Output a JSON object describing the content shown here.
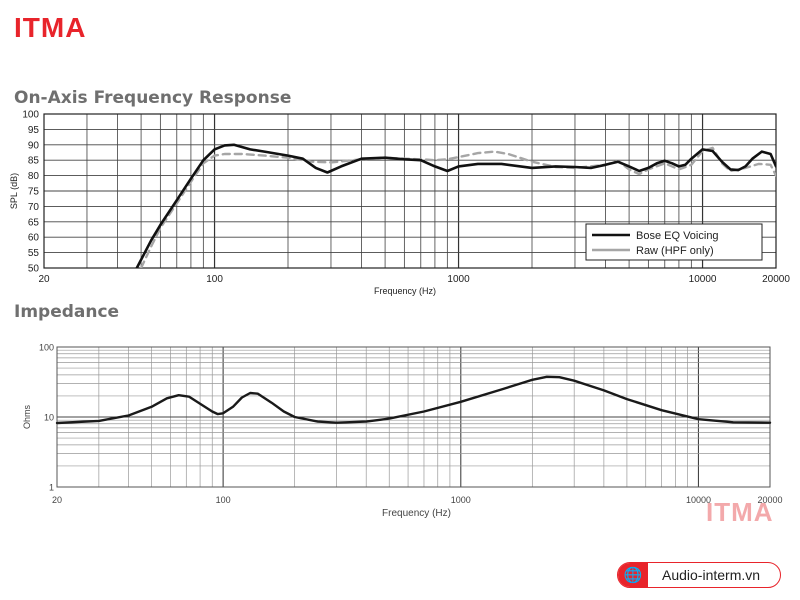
{
  "brand": {
    "logo_text": "ITMA",
    "watermark_text": "ITMA",
    "accent_color": "#e8242b",
    "site_badge": {
      "icon": "globe-icon",
      "text": "Audio-interm.vn"
    }
  },
  "chart_data": [
    {
      "type": "line",
      "title": "On-Axis Frequency Response",
      "xlabel": "Frequency (Hz)",
      "ylabel": "SPL (dB)",
      "xscale": "log",
      "xlim": [
        20,
        20000
      ],
      "ylim": [
        50,
        100
      ],
      "x_ticks": [
        20,
        100,
        1000,
        10000,
        20000
      ],
      "x_tick_labels": [
        "20",
        "100",
        "1000",
        "10000",
        "20000"
      ],
      "y_ticks": [
        50,
        55,
        60,
        65,
        70,
        75,
        80,
        85,
        90,
        95,
        100
      ],
      "y_tick_labels": [
        "50",
        "55",
        "60",
        "65",
        "70",
        "75",
        "80",
        "85",
        "90",
        "95",
        "100"
      ],
      "grid": true,
      "legend_position": "bottom-right",
      "series": [
        {
          "name": "Bose EQ Voicing",
          "color": "#111111",
          "dash": "solid",
          "points": [
            [
              48,
              50
            ],
            [
              55,
              59
            ],
            [
              60,
              64
            ],
            [
              70,
              72
            ],
            [
              80,
              79
            ],
            [
              90,
              85
            ],
            [
              100,
              88.5
            ],
            [
              110,
              89.8
            ],
            [
              120,
              90
            ],
            [
              140,
              88.5
            ],
            [
              160,
              87.8
            ],
            [
              200,
              86.5
            ],
            [
              230,
              85.5
            ],
            [
              260,
              82.5
            ],
            [
              290,
              81
            ],
            [
              330,
              83
            ],
            [
              400,
              85.5
            ],
            [
              500,
              85.8
            ],
            [
              600,
              85.3
            ],
            [
              700,
              85
            ],
            [
              800,
              83
            ],
            [
              900,
              81.5
            ],
            [
              1000,
              83
            ],
            [
              1200,
              83.8
            ],
            [
              1500,
              83.8
            ],
            [
              2000,
              82.5
            ],
            [
              2500,
              83
            ],
            [
              3000,
              82.8
            ],
            [
              3500,
              82.5
            ],
            [
              4000,
              83.5
            ],
            [
              4500,
              84.5
            ],
            [
              5000,
              83
            ],
            [
              5500,
              81.5
            ],
            [
              6000,
              82.5
            ],
            [
              6500,
              84
            ],
            [
              7000,
              84.8
            ],
            [
              7500,
              84
            ],
            [
              8000,
              83
            ],
            [
              8500,
              83.5
            ],
            [
              9000,
              85.5
            ],
            [
              10000,
              88.5
            ],
            [
              11000,
              88
            ],
            [
              12000,
              84.5
            ],
            [
              13000,
              82
            ],
            [
              14000,
              81.8
            ],
            [
              15000,
              83
            ],
            [
              16000,
              85.5
            ],
            [
              17500,
              87.8
            ],
            [
              19000,
              87
            ],
            [
              20000,
              83
            ]
          ]
        },
        {
          "name": "Raw (HPF only)",
          "color": "#a6a6a6",
          "dash": "dashed",
          "points": [
            [
              50,
              50
            ],
            [
              55,
              57
            ],
            [
              60,
              63
            ],
            [
              70,
              71
            ],
            [
              80,
              78
            ],
            [
              90,
              84
            ],
            [
              100,
              86.5
            ],
            [
              110,
              87
            ],
            [
              130,
              87
            ],
            [
              160,
              86.5
            ],
            [
              200,
              85.8
            ],
            [
              250,
              84.5
            ],
            [
              300,
              84.3
            ],
            [
              400,
              85.3
            ],
            [
              500,
              85.8
            ],
            [
              600,
              85.5
            ],
            [
              700,
              85.3
            ],
            [
              800,
              85
            ],
            [
              900,
              85.3
            ],
            [
              1000,
              86
            ],
            [
              1200,
              87.3
            ],
            [
              1400,
              87.8
            ],
            [
              1600,
              87
            ],
            [
              2000,
              84.5
            ],
            [
              2500,
              82.8
            ],
            [
              3000,
              82.5
            ],
            [
              4000,
              83.5
            ],
            [
              4500,
              84.8
            ],
            [
              5000,
              82
            ],
            [
              5500,
              80.5
            ],
            [
              6000,
              82
            ],
            [
              7000,
              84
            ],
            [
              8000,
              82
            ],
            [
              9000,
              83.5
            ],
            [
              10000,
              88
            ],
            [
              11000,
              89
            ],
            [
              12000,
              84
            ],
            [
              13000,
              81.5
            ],
            [
              15000,
              82.5
            ],
            [
              17000,
              83.8
            ],
            [
              19000,
              83.5
            ],
            [
              20000,
              80
            ]
          ]
        }
      ]
    },
    {
      "type": "line",
      "title": "Impedance",
      "xlabel": "Frequency (Hz)",
      "ylabel": "Ohms",
      "xscale": "log",
      "yscale": "log",
      "xlim": [
        20,
        20000
      ],
      "ylim": [
        1,
        100
      ],
      "x_ticks": [
        20,
        100,
        1000,
        10000,
        20000
      ],
      "x_tick_labels": [
        "20",
        "100",
        "1000",
        "10000",
        "20000"
      ],
      "y_ticks": [
        1,
        10,
        100
      ],
      "y_tick_labels": [
        "1",
        "10",
        "100"
      ],
      "grid": true,
      "series": [
        {
          "color": "#1a1a1a",
          "dash": "solid",
          "points": [
            [
              20,
              8.2
            ],
            [
              30,
              8.8
            ],
            [
              40,
              10.5
            ],
            [
              50,
              14
            ],
            [
              58,
              18.5
            ],
            [
              65,
              20.5
            ],
            [
              72,
              19.5
            ],
            [
              80,
              15.5
            ],
            [
              90,
              12
            ],
            [
              95,
              11
            ],
            [
              100,
              11.3
            ],
            [
              110,
              14
            ],
            [
              120,
              19
            ],
            [
              130,
              22
            ],
            [
              140,
              21.5
            ],
            [
              160,
              16
            ],
            [
              180,
              12
            ],
            [
              200,
              10
            ],
            [
              250,
              8.6
            ],
            [
              300,
              8.3
            ],
            [
              400,
              8.6
            ],
            [
              500,
              9.5
            ],
            [
              700,
              12
            ],
            [
              1000,
              16.5
            ],
            [
              1500,
              25
            ],
            [
              2000,
              34
            ],
            [
              2300,
              37.5
            ],
            [
              2600,
              37
            ],
            [
              3000,
              33
            ],
            [
              4000,
              24
            ],
            [
              5000,
              18
            ],
            [
              7000,
              12.5
            ],
            [
              10000,
              9.3
            ],
            [
              14000,
              8.4
            ],
            [
              20000,
              8.3
            ]
          ]
        }
      ]
    }
  ]
}
